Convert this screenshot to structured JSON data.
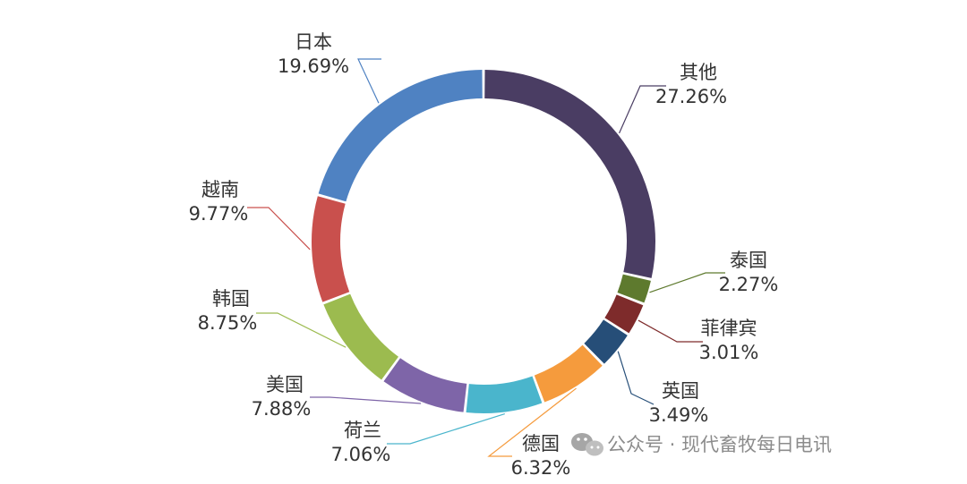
{
  "chart_data": {
    "type": "pie",
    "donut": true,
    "title": "",
    "legend": "none",
    "slices": [
      {
        "label": "其他",
        "value": 27.26,
        "value_label": "27.26%",
        "color": "#4a3d63"
      },
      {
        "label": "泰国",
        "value": 2.27,
        "value_label": "2.27%",
        "color": "#5e7a2e"
      },
      {
        "label": "菲律宾",
        "value": 3.01,
        "value_label": "3.01%",
        "color": "#7e2b2b"
      },
      {
        "label": "英国",
        "value": 3.49,
        "value_label": "3.49%",
        "color": "#264e78"
      },
      {
        "label": "德国",
        "value": 6.32,
        "value_label": "6.32%",
        "color": "#f59b3d"
      },
      {
        "label": "荷兰",
        "value": 7.06,
        "value_label": "7.06%",
        "color": "#4ab5cc"
      },
      {
        "label": "美国",
        "value": 7.88,
        "value_label": "7.88%",
        "color": "#7e65a8"
      },
      {
        "label": "韩国",
        "value": 8.75,
        "value_label": "8.75%",
        "color": "#9cbb4f"
      },
      {
        "label": "越南",
        "value": 9.77,
        "value_label": "9.77%",
        "color": "#c9504d"
      },
      {
        "label": "日本",
        "value": 19.69,
        "value_label": "19.69%",
        "color": "#4f82c2"
      }
    ],
    "slice_order_note": ""
  },
  "watermark": {
    "icon": "wechat-icon",
    "text": "公众号 · 现代畜牧每日电讯"
  }
}
